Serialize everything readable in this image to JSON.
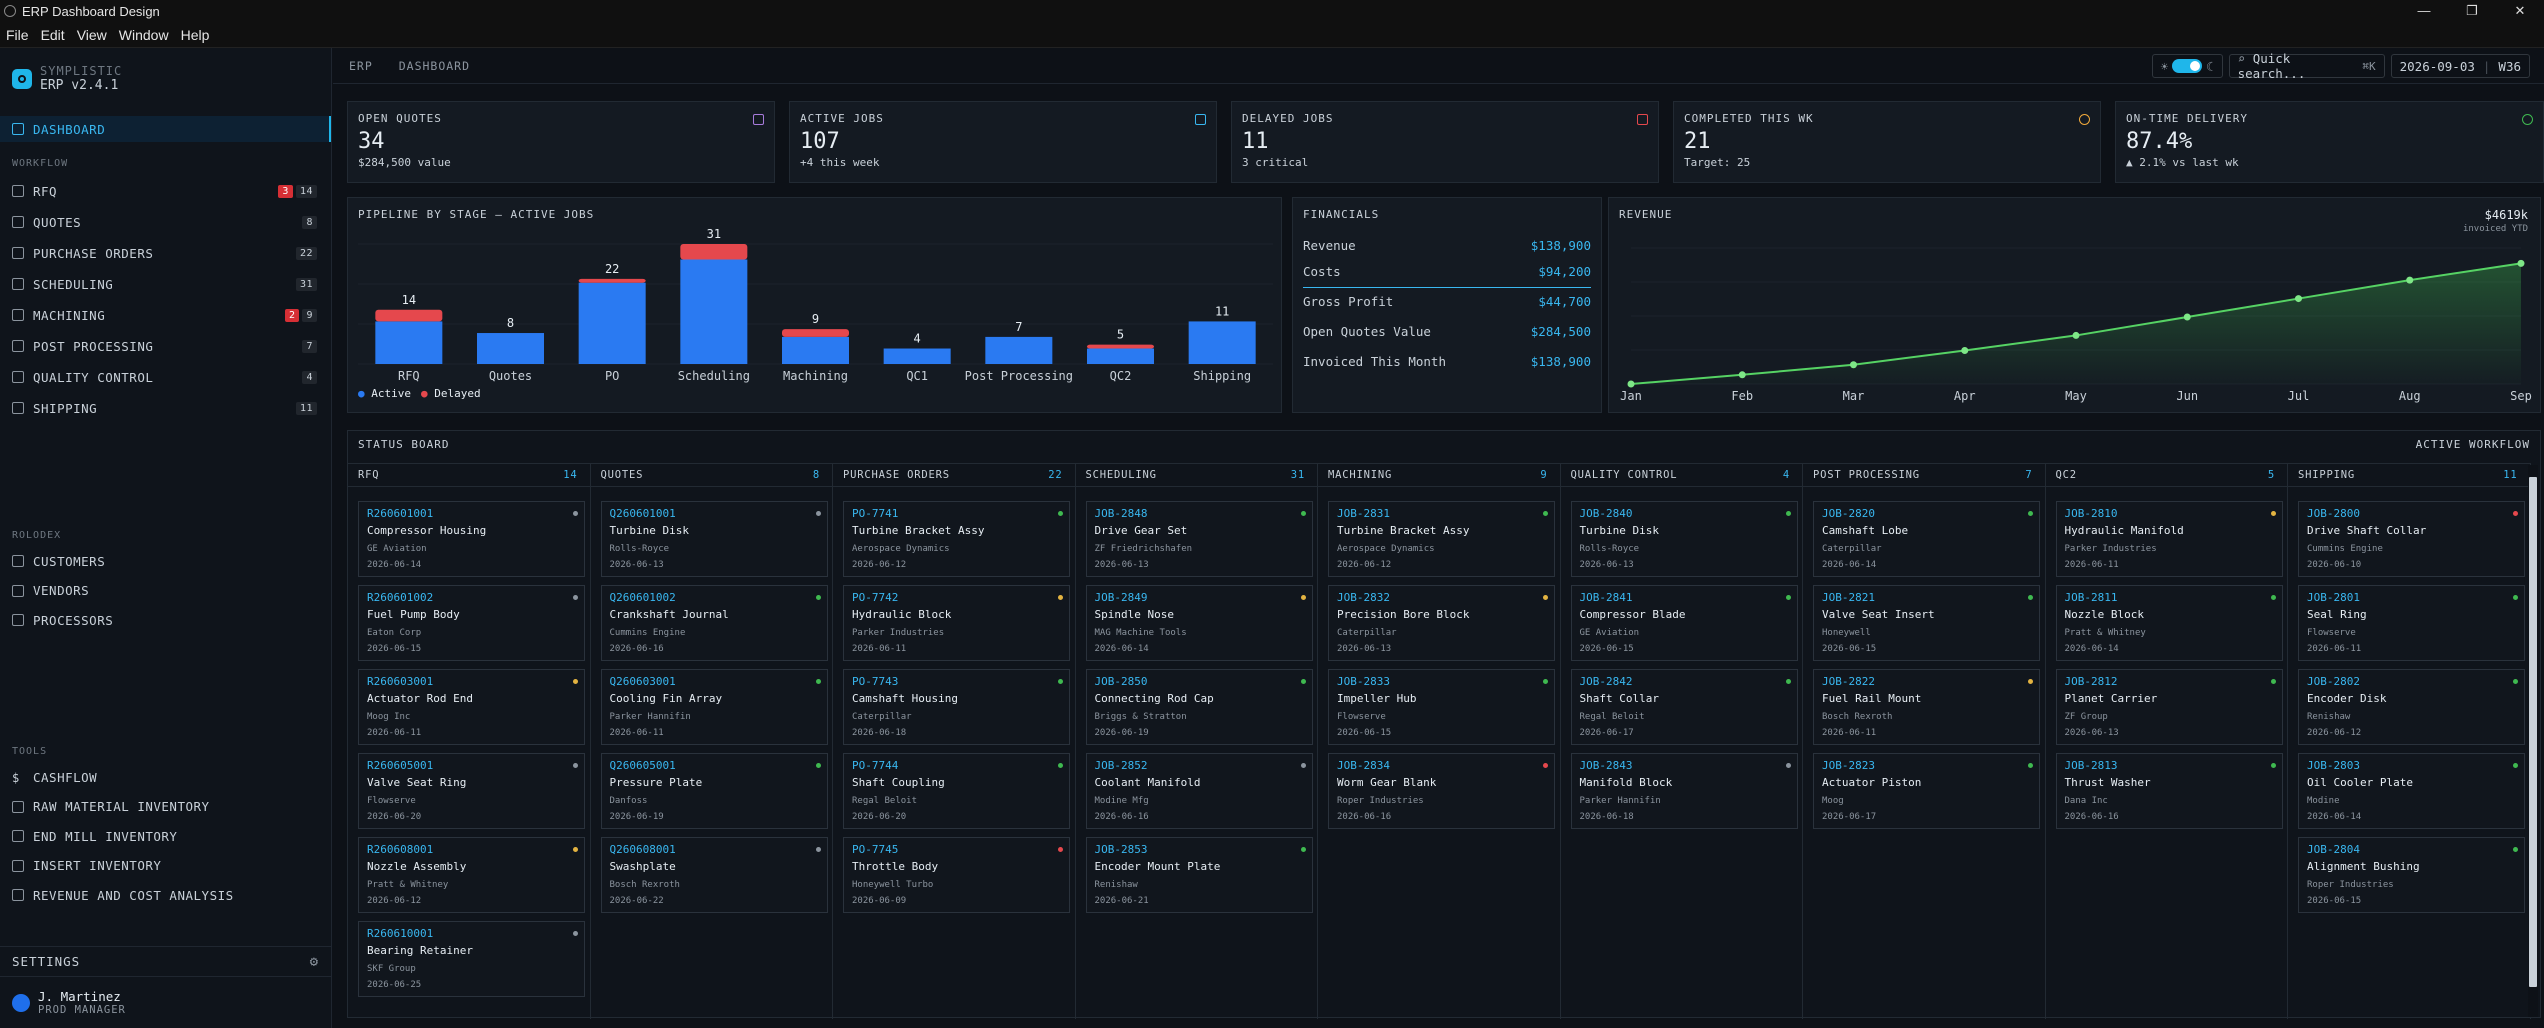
{
  "window": {
    "title": "ERP Dashboard Design",
    "controls": [
      "—",
      "❐",
      "✕"
    ]
  },
  "menu": [
    "File",
    "Edit",
    "View",
    "Window",
    "Help"
  ],
  "brand": {
    "name": "SYMPLISTIC",
    "version": "ERP v2.4.1"
  },
  "sidebar": {
    "dashboard": "DASHBOARD",
    "workflow_title": "WORKFLOW",
    "workflow": [
      {
        "label": "RFQ",
        "alert": "3",
        "count": "14"
      },
      {
        "label": "QUOTES",
        "count": "8"
      },
      {
        "label": "PURCHASE ORDERS",
        "count": "22"
      },
      {
        "label": "SCHEDULING",
        "count": "31"
      },
      {
        "label": "MACHINING",
        "alert": "2",
        "count": "9"
      },
      {
        "label": "POST PROCESSING",
        "count": "7"
      },
      {
        "label": "QUALITY CONTROL",
        "count": "4"
      },
      {
        "label": "SHIPPING",
        "count": "11"
      }
    ],
    "rolodex_title": "ROLODEX",
    "rolodex": [
      {
        "label": "CUSTOMERS"
      },
      {
        "label": "VENDORS"
      },
      {
        "label": "PROCESSORS"
      }
    ],
    "tools_title": "TOOLS",
    "tools": [
      {
        "label": "CASHFLOW",
        "icon": "$"
      },
      {
        "label": "RAW MATERIAL INVENTORY"
      },
      {
        "label": "END MILL INVENTORY"
      },
      {
        "label": "INSERT INVENTORY"
      },
      {
        "label": "REVENUE AND COST ANALYSIS"
      }
    ],
    "settings": "SETTINGS",
    "user": {
      "name": "J. Martinez",
      "role": "PROD MANAGER"
    }
  },
  "topbar": {
    "crumbs": [
      "ERP",
      "DASHBOARD"
    ],
    "search_placeholder": "Quick search...",
    "shortcut": "⌘K",
    "date": "2026-09-03",
    "week": "W36"
  },
  "kpis": [
    {
      "label": "OPEN QUOTES",
      "value": "34",
      "sub": "$284,500 value",
      "color": "#a77bdb"
    },
    {
      "label": "ACTIVE JOBS",
      "value": "107",
      "sub": "+4 this week",
      "color": "#39b7f0"
    },
    {
      "label": "DELAYED JOBS",
      "value": "11",
      "sub": "3 critical",
      "color": "#e5484d"
    },
    {
      "label": "COMPLETED THIS WK",
      "value": "21",
      "sub": "Target: 25",
      "color": "#f0a93b"
    },
    {
      "label": "ON-TIME DELIVERY",
      "value": "87.4%",
      "sub": "▲ 2.1% vs last wk",
      "color": "#3fb950"
    }
  ],
  "pipeline": {
    "title": "PIPELINE BY STAGE — ACTIVE JOBS",
    "legend": [
      "Active",
      "Delayed"
    ]
  },
  "chart_data": [
    {
      "type": "bar",
      "title": "PIPELINE BY STAGE — ACTIVE JOBS",
      "categories": [
        "RFQ",
        "Quotes",
        "PO",
        "Scheduling",
        "Machining",
        "QC1",
        "Post Processing",
        "QC2",
        "Shipping"
      ],
      "totals": [
        14,
        8,
        22,
        31,
        9,
        4,
        7,
        5,
        11
      ],
      "series": [
        {
          "name": "Active",
          "values": [
            11,
            8,
            21,
            27,
            7,
            4,
            7,
            4,
            11
          ]
        },
        {
          "name": "Delayed",
          "values": [
            3,
            0,
            1,
            4,
            2,
            0,
            0,
            1,
            0
          ]
        }
      ],
      "ylim": [
        0,
        31
      ]
    },
    {
      "type": "line",
      "title": "REVENUE",
      "x": [
        "Jan",
        "Feb",
        "Mar",
        "Apr",
        "May",
        "Jun",
        "Jul",
        "Aug",
        "Sep"
      ],
      "values": [
        0,
        55,
        115,
        200,
        290,
        400,
        510,
        620,
        720
      ],
      "ylim": [
        0,
        800
      ]
    }
  ],
  "financials": {
    "title": "FINANCIALS",
    "rows": [
      {
        "label": "Revenue",
        "value": "$138,900"
      },
      {
        "label": "Costs",
        "value": "$94,200"
      },
      {
        "label": "Gross Profit",
        "value": "$44,700"
      },
      {
        "label": "Open Quotes Value",
        "value": "$284,500"
      },
      {
        "label": "Invoiced This Month",
        "value": "$138,900"
      }
    ]
  },
  "revenue": {
    "title": "REVENUE",
    "total": "$4619k",
    "sub": "invoiced YTD"
  },
  "board": {
    "title": "STATUS BOARD",
    "action": "ACTIVE WORKFLOW",
    "columns": [
      {
        "name": "RFQ",
        "count": "14",
        "cards": [
          {
            "id": "R260601001",
            "name": "Compressor Housing",
            "cust": "GE Aviation",
            "date": "2026-06-14",
            "status": "#8b949e"
          },
          {
            "id": "R260601002",
            "name": "Fuel Pump Body",
            "cust": "Eaton Corp",
            "date": "2026-06-15",
            "status": "#8b949e"
          },
          {
            "id": "R260603001",
            "name": "Actuator Rod End",
            "cust": "Moog Inc",
            "date": "2026-06-11",
            "status": "#e3b341"
          },
          {
            "id": "R260605001",
            "name": "Valve Seat Ring",
            "cust": "Flowserve",
            "date": "2026-06-20",
            "status": "#8b949e"
          },
          {
            "id": "R260608001",
            "name": "Nozzle Assembly",
            "cust": "Pratt & Whitney",
            "date": "2026-06-12",
            "status": "#e3b341"
          },
          {
            "id": "R260610001",
            "name": "Bearing Retainer",
            "cust": "SKF Group",
            "date": "2026-06-25",
            "status": "#8b949e"
          }
        ]
      },
      {
        "name": "QUOTES",
        "count": "8",
        "cards": [
          {
            "id": "Q260601001",
            "name": "Turbine Disk",
            "cust": "Rolls-Royce",
            "date": "2026-06-13",
            "status": "#8b949e"
          },
          {
            "id": "Q260601002",
            "name": "Crankshaft Journal",
            "cust": "Cummins Engine",
            "date": "2026-06-16",
            "status": "#3fb950"
          },
          {
            "id": "Q260603001",
            "name": "Cooling Fin Array",
            "cust": "Parker Hannifin",
            "date": "2026-06-11",
            "status": "#3fb950"
          },
          {
            "id": "Q260605001",
            "name": "Pressure Plate",
            "cust": "Danfoss",
            "date": "2026-06-19",
            "status": "#3fb950"
          },
          {
            "id": "Q260608001",
            "name": "Swashplate",
            "cust": "Bosch Rexroth",
            "date": "2026-06-22",
            "status": "#8b949e"
          }
        ]
      },
      {
        "name": "PURCHASE ORDERS",
        "count": "22",
        "cards": [
          {
            "id": "PO-7741",
            "name": "Turbine Bracket Assy",
            "cust": "Aerospace Dynamics",
            "date": "2026-06-12",
            "status": "#3fb950"
          },
          {
            "id": "PO-7742",
            "name": "Hydraulic Block",
            "cust": "Parker Industries",
            "date": "2026-06-11",
            "status": "#e3b341"
          },
          {
            "id": "PO-7743",
            "name": "Camshaft Housing",
            "cust": "Caterpillar",
            "date": "2026-06-18",
            "status": "#3fb950"
          },
          {
            "id": "PO-7744",
            "name": "Shaft Coupling",
            "cust": "Regal Beloit",
            "date": "2026-06-20",
            "status": "#3fb950"
          },
          {
            "id": "PO-7745",
            "name": "Throttle Body",
            "cust": "Honeywell Turbo",
            "date": "2026-06-09",
            "status": "#e5484d"
          }
        ]
      },
      {
        "name": "SCHEDULING",
        "count": "31",
        "cards": [
          {
            "id": "JOB-2848",
            "name": "Drive Gear Set",
            "cust": "ZF Friedrichshafen",
            "date": "2026-06-13",
            "status": "#3fb950"
          },
          {
            "id": "JOB-2849",
            "name": "Spindle Nose",
            "cust": "MAG Machine Tools",
            "date": "2026-06-14",
            "status": "#e3b341"
          },
          {
            "id": "JOB-2850",
            "name": "Connecting Rod Cap",
            "cust": "Briggs & Stratton",
            "date": "2026-06-19",
            "status": "#3fb950"
          },
          {
            "id": "JOB-2852",
            "name": "Coolant Manifold",
            "cust": "Modine Mfg",
            "date": "2026-06-16",
            "status": "#8b949e"
          },
          {
            "id": "JOB-2853",
            "name": "Encoder Mount Plate",
            "cust": "Renishaw",
            "date": "2026-06-21",
            "status": "#3fb950"
          }
        ]
      },
      {
        "name": "MACHINING",
        "count": "9",
        "cards": [
          {
            "id": "JOB-2831",
            "name": "Turbine Bracket Assy",
            "cust": "Aerospace Dynamics",
            "date": "2026-06-12",
            "status": "#3fb950"
          },
          {
            "id": "JOB-2832",
            "name": "Precision Bore Block",
            "cust": "Caterpillar",
            "date": "2026-06-13",
            "status": "#e3b341"
          },
          {
            "id": "JOB-2833",
            "name": "Impeller Hub",
            "cust": "Flowserve",
            "date": "2026-06-15",
            "status": "#3fb950"
          },
          {
            "id": "JOB-2834",
            "name": "Worm Gear Blank",
            "cust": "Roper Industries",
            "date": "2026-06-16",
            "status": "#e5484d"
          }
        ]
      },
      {
        "name": "QUALITY CONTROL",
        "count": "4",
        "cards": [
          {
            "id": "JOB-2840",
            "name": "Turbine Disk",
            "cust": "Rolls-Royce",
            "date": "2026-06-13",
            "status": "#3fb950"
          },
          {
            "id": "JOB-2841",
            "name": "Compressor Blade",
            "cust": "GE Aviation",
            "date": "2026-06-15",
            "status": "#3fb950"
          },
          {
            "id": "JOB-2842",
            "name": "Shaft Collar",
            "cust": "Regal Beloit",
            "date": "2026-06-17",
            "status": "#3fb950"
          },
          {
            "id": "JOB-2843",
            "name": "Manifold Block",
            "cust": "Parker Hannifin",
            "date": "2026-06-18",
            "status": "#8b949e"
          }
        ]
      },
      {
        "name": "POST PROCESSING",
        "count": "7",
        "cards": [
          {
            "id": "JOB-2820",
            "name": "Camshaft Lobe",
            "cust": "Caterpillar",
            "date": "2026-06-14",
            "status": "#3fb950"
          },
          {
            "id": "JOB-2821",
            "name": "Valve Seat Insert",
            "cust": "Honeywell",
            "date": "2026-06-15",
            "status": "#3fb950"
          },
          {
            "id": "JOB-2822",
            "name": "Fuel Rail Mount",
            "cust": "Bosch Rexroth",
            "date": "2026-06-11",
            "status": "#e3b341"
          },
          {
            "id": "JOB-2823",
            "name": "Actuator Piston",
            "cust": "Moog",
            "date": "2026-06-17",
            "status": "#3fb950"
          }
        ]
      },
      {
        "name": "QC2",
        "count": "5",
        "cards": [
          {
            "id": "JOB-2810",
            "name": "Hydraulic Manifold",
            "cust": "Parker Industries",
            "date": "2026-06-11",
            "status": "#e3b341"
          },
          {
            "id": "JOB-2811",
            "name": "Nozzle Block",
            "cust": "Pratt & Whitney",
            "date": "2026-06-14",
            "status": "#3fb950"
          },
          {
            "id": "JOB-2812",
            "name": "Planet Carrier",
            "cust": "ZF Group",
            "date": "2026-06-13",
            "status": "#3fb950"
          },
          {
            "id": "JOB-2813",
            "name": "Thrust Washer",
            "cust": "Dana Inc",
            "date": "2026-06-16",
            "status": "#3fb950"
          }
        ]
      },
      {
        "name": "SHIPPING",
        "count": "11",
        "cards": [
          {
            "id": "JOB-2800",
            "name": "Drive Shaft Collar",
            "cust": "Cummins Engine",
            "date": "2026-06-10",
            "status": "#e5484d"
          },
          {
            "id": "JOB-2801",
            "name": "Seal Ring",
            "cust": "Flowserve",
            "date": "2026-06-11",
            "status": "#3fb950"
          },
          {
            "id": "JOB-2802",
            "name": "Encoder Disk",
            "cust": "Renishaw",
            "date": "2026-06-12",
            "status": "#3fb950"
          },
          {
            "id": "JOB-2803",
            "name": "Oil Cooler Plate",
            "cust": "Modine",
            "date": "2026-06-14",
            "status": "#3fb950"
          },
          {
            "id": "JOB-2804",
            "name": "Alignment Bushing",
            "cust": "Roper Industries",
            "date": "2026-06-15",
            "status": "#3fb950"
          }
        ]
      }
    ]
  }
}
